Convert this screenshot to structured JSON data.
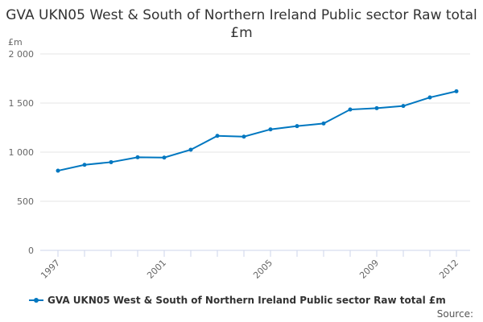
{
  "chart_data": {
    "type": "line",
    "title": "GVA UKN05 West & South of Northern Ireland Public sector Raw total £m",
    "ylabel": "£m",
    "xlabel": "",
    "ylim": [
      0,
      2000
    ],
    "yticks": [
      0,
      500,
      1000,
      1500,
      2000
    ],
    "ytick_labels": [
      "0",
      "500",
      "1 000",
      "1 500",
      "2 000"
    ],
    "x": [
      1997,
      1998,
      1999,
      2000,
      2001,
      2002,
      2003,
      2004,
      2005,
      2006,
      2007,
      2008,
      2009,
      2010,
      2011,
      2012
    ],
    "xtick_labels": [
      "1997",
      "2001",
      "2005",
      "2009",
      "2012"
    ],
    "grid": true,
    "legend_position": "bottom",
    "series": [
      {
        "name": "GVA UKN05 West & South of Northern Ireland Public sector Raw total £m",
        "color": "#0077c0",
        "values": [
          811,
          871,
          898,
          948,
          945,
          1025,
          1166,
          1158,
          1232,
          1265,
          1292,
          1434,
          1448,
          1470,
          1557,
          1620
        ]
      }
    ]
  },
  "source_label": "Source:"
}
